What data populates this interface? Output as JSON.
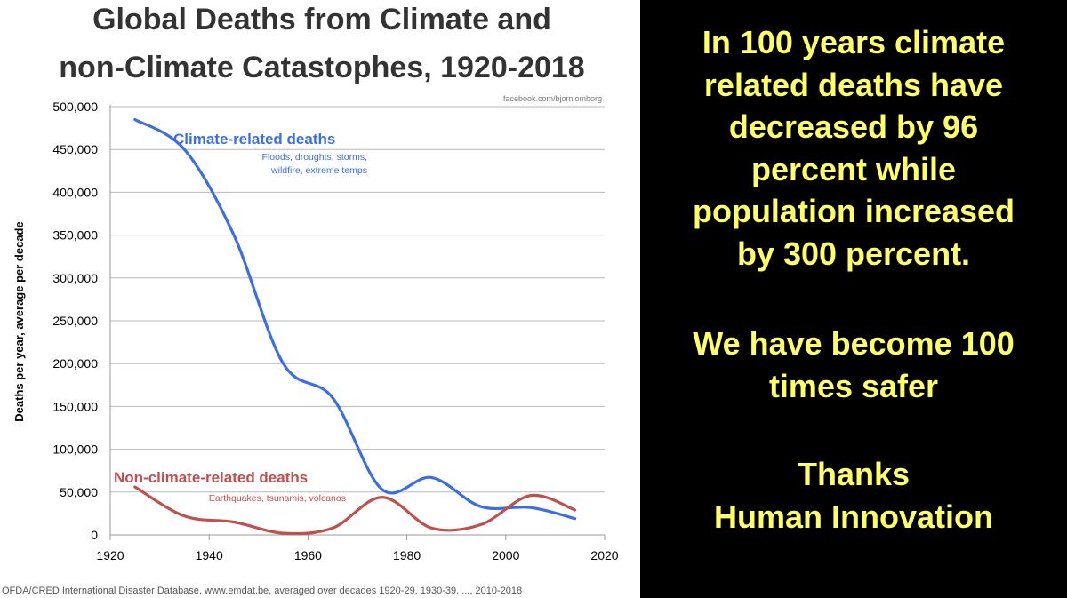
{
  "chart_data": {
    "type": "line",
    "title_lines": [
      "Global Deaths from Climate and",
      "non-Climate Catastophes, 1920-2018"
    ],
    "credit": "facebook.com/bjornlomborg",
    "ylabel": "Deaths per year, average per decade",
    "xlabel": "",
    "xlim": [
      1920,
      2020
    ],
    "ylim": [
      0,
      500000
    ],
    "x_ticks": [
      "1920",
      "1940",
      "1960",
      "1980",
      "2000",
      "2020"
    ],
    "y_ticks": [
      "0",
      "50,000",
      "100,000",
      "150,000",
      "200,000",
      "250,000",
      "300,000",
      "350,000",
      "400,000",
      "450,000",
      "500,000"
    ],
    "x_tick_values": [
      1920,
      1940,
      1960,
      1980,
      2000,
      2020
    ],
    "y_tick_values": [
      0,
      50000,
      100000,
      150000,
      200000,
      250000,
      300000,
      350000,
      400000,
      450000,
      500000
    ],
    "grid": true,
    "series": [
      {
        "name": "Climate-related deaths",
        "subtitle_lines": [
          "Floods, droughts, storms,",
          "wildfire, extreme temps"
        ],
        "color": "#3a6ee8",
        "x": [
          1925,
          1935,
          1945,
          1955,
          1965,
          1975,
          1985,
          1995,
          2005,
          2014
        ],
        "values": [
          485000,
          450000,
          350000,
          200000,
          160000,
          53000,
          67000,
          33000,
          32000,
          19000
        ]
      },
      {
        "name": "Non-climate-related deaths",
        "subtitle_lines": [
          "Earthquakes, tsunamis, volcanos"
        ],
        "color": "#c0504d",
        "x": [
          1925,
          1935,
          1945,
          1955,
          1965,
          1975,
          1985,
          1995,
          2005,
          2014
        ],
        "values": [
          56000,
          22000,
          15000,
          2000,
          8000,
          44000,
          8000,
          12000,
          46000,
          29000
        ]
      }
    ],
    "source": "OFDA/CRED International Disaster Database, www.emdat.be, averaged over decades 1920-29, 1930-39, ..., 2010-2018"
  },
  "slide": {
    "para1_lines": [
      "In 100 years climate",
      "related deaths have",
      "decreased by 96",
      "percent while",
      "population increased",
      "by 300 percent."
    ],
    "para2_lines": [
      "We have become 100",
      "times safer"
    ],
    "para3_lines": [
      "Thanks",
      "Human Innovation"
    ],
    "text_color": "#ffff66",
    "background": "#000000"
  }
}
